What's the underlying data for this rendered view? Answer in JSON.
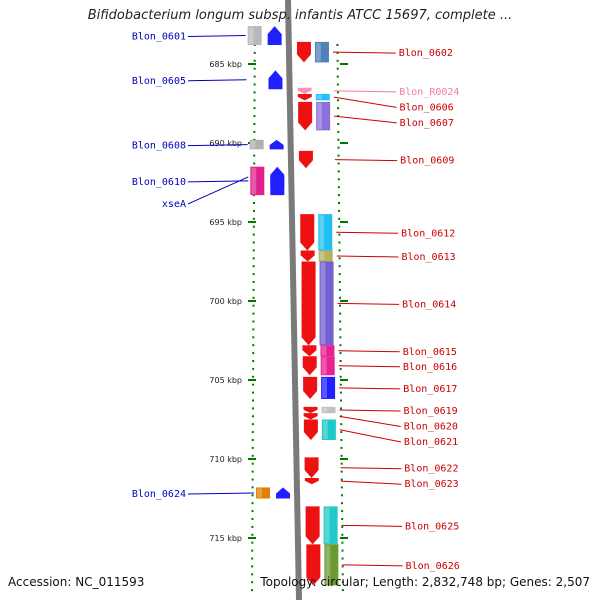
{
  "title": "Bifidobacterium longum subsp. infantis ATCC 15697, complete ...",
  "footer": {
    "accession": "Accession: NC_011593",
    "topology": "Topology: circular; Length: 2,832,748 bp; Genes: 2,507"
  },
  "colors": {
    "backbone": "#7a7a7a",
    "left_label": "#0000c0",
    "right_label": "#cc0000",
    "rna_label": "#f080a0",
    "tick": "#007700"
  },
  "ticks": [
    {
      "kbp": 685,
      "label": "685 kbp"
    },
    {
      "kbp": 690,
      "label": "690 kbp"
    },
    {
      "kbp": 695,
      "label": "695 kbp"
    },
    {
      "kbp": 700,
      "label": "700 kbp"
    },
    {
      "kbp": 705,
      "label": "705 kbp"
    },
    {
      "kbp": 710,
      "label": "710 kbp"
    },
    {
      "kbp": 715,
      "label": "715 kbp"
    }
  ],
  "genes_left": [
    {
      "name": "Blon_0601",
      "start_kbp": 682.6,
      "end_kbp": 683.8,
      "strand": "+",
      "color": "#2020ff",
      "cog_color": "#b8b8b8"
    },
    {
      "name": "Blon_0605",
      "start_kbp": 685.4,
      "end_kbp": 686.6,
      "strand": "+",
      "color": "#2020ff",
      "cog_color": null
    },
    {
      "name": "Blon_0608",
      "start_kbp": 689.8,
      "end_kbp": 690.4,
      "strand": "+",
      "color": "#2020ff",
      "cog_color": "#b0b0b0"
    },
    {
      "name": "Blon_0610",
      "start_kbp": 691.5,
      "end_kbp": 693.3,
      "strand": "+",
      "color": "#2020ff",
      "cog_color": "#e0208c"
    },
    {
      "name": "xseA",
      "start_kbp": 691.5,
      "end_kbp": 692.8,
      "strand": "+",
      "color": "#2020ff",
      "cog_color": null
    },
    {
      "name": "Blon_0624",
      "start_kbp": 711.8,
      "end_kbp": 712.5,
      "strand": "+",
      "color": "#2020ff",
      "cog_color": "#e08000"
    }
  ],
  "genes_right": [
    {
      "name": "Blon_0602",
      "start_kbp": 683.6,
      "end_kbp": 684.9,
      "strand": "-",
      "color": "#ee1111",
      "cog_color": "#4f82b8"
    },
    {
      "name": "Blon_R0024",
      "start_kbp": 686.5,
      "end_kbp": 686.9,
      "strand": "-",
      "color": "#ff90b0",
      "cog_color": null,
      "rna": true
    },
    {
      "name": "Blon_0606",
      "start_kbp": 686.9,
      "end_kbp": 687.3,
      "strand": "-",
      "color": "#ee1111",
      "cog_color": "#20c0ff"
    },
    {
      "name": "Blon_0607",
      "start_kbp": 687.4,
      "end_kbp": 689.2,
      "strand": "-",
      "color": "#ee1111",
      "cog_color": "#8a70d8"
    },
    {
      "name": "Blon_0609",
      "start_kbp": 690.5,
      "end_kbp": 691.6,
      "strand": "-",
      "color": "#ee1111",
      "cog_color": null
    },
    {
      "name": "Blon_0612",
      "start_kbp": 694.5,
      "end_kbp": 696.8,
      "strand": "-",
      "color": "#ee1111",
      "cog_color": "#20c0f0"
    },
    {
      "name": "Blon_0613",
      "start_kbp": 696.8,
      "end_kbp": 697.5,
      "strand": "-",
      "color": "#ee1111",
      "cog_color": "#b8b060"
    },
    {
      "name": "Blon_0614",
      "start_kbp": 697.5,
      "end_kbp": 702.8,
      "strand": "-",
      "color": "#ee1111",
      "cog_color": "#7060d0"
    },
    {
      "name": "Blon_0615",
      "start_kbp": 702.8,
      "end_kbp": 703.5,
      "strand": "-",
      "color": "#ee1111",
      "cog_color": "#e82090"
    },
    {
      "name": "Blon_0616",
      "start_kbp": 703.5,
      "end_kbp": 704.7,
      "strand": "-",
      "color": "#ee1111",
      "cog_color": "#e82090"
    },
    {
      "name": "Blon_0617",
      "start_kbp": 704.8,
      "end_kbp": 706.2,
      "strand": "-",
      "color": "#ee1111",
      "cog_color": "#2020ff"
    },
    {
      "name": "Blon_0619",
      "start_kbp": 706.7,
      "end_kbp": 707.1,
      "strand": "-",
      "color": "#ee1111",
      "cog_color": "#c0c0c0"
    },
    {
      "name": "Blon_0620",
      "start_kbp": 707.1,
      "end_kbp": 707.5,
      "strand": "-",
      "color": "#ee1111",
      "cog_color": null
    },
    {
      "name": "Blon_0621",
      "start_kbp": 707.5,
      "end_kbp": 708.8,
      "strand": "-",
      "color": "#ee1111",
      "cog_color": "#20c8c8"
    },
    {
      "name": "Blon_0622",
      "start_kbp": 709.9,
      "end_kbp": 711.2,
      "strand": "-",
      "color": "#ee1111",
      "cog_color": null
    },
    {
      "name": "Blon_0623",
      "start_kbp": 711.2,
      "end_kbp": 711.6,
      "strand": "-",
      "color": "#ee1111",
      "cog_color": null
    },
    {
      "name": "Blon_0625",
      "start_kbp": 713.0,
      "end_kbp": 715.4,
      "strand": "-",
      "color": "#ee1111",
      "cog_color": "#20c8c8"
    },
    {
      "name": "Blon_0626",
      "start_kbp": 715.4,
      "end_kbp": 718.0,
      "strand": "-",
      "color": "#ee1111",
      "cog_color": "#6a9a30"
    }
  ]
}
